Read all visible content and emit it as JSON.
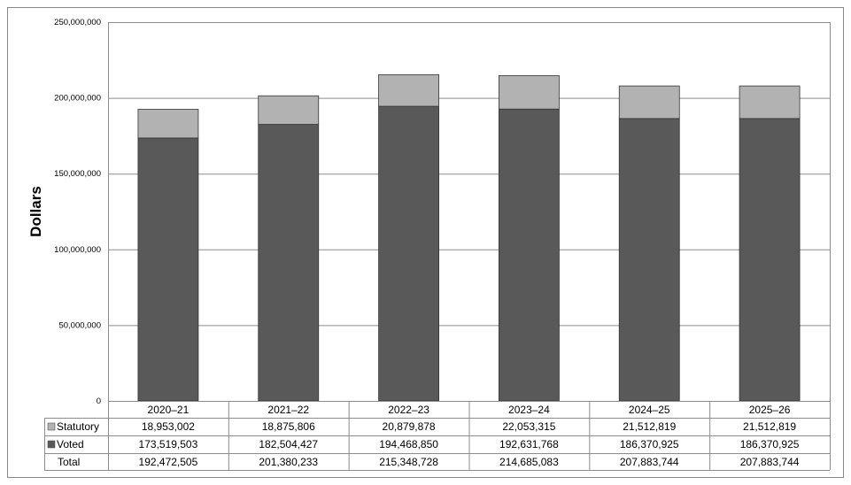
{
  "chart_data": {
    "type": "bar",
    "stacked": true,
    "categories": [
      "2020–21",
      "2021–22",
      "2022–23",
      "2023–24",
      "2024–25",
      "2025–26"
    ],
    "series": [
      {
        "name": "Voted",
        "values": [
          173519503,
          182504427,
          194468850,
          192631768,
          186370925,
          186370925
        ],
        "color": "#595959"
      },
      {
        "name": "Statutory",
        "values": [
          18953002,
          18875806,
          20879878,
          22053315,
          21512819,
          21512819
        ],
        "color": "#b2b2b2"
      }
    ],
    "totals_label": "Total",
    "totals": [
      192472505,
      201380233,
      215348728,
      214685083,
      207883744,
      207883744
    ],
    "ylabel": "Dollars",
    "ylim": [
      0,
      250000000
    ],
    "yticks": [
      0,
      50000000,
      100000000,
      150000000,
      200000000,
      250000000
    ],
    "ytick_labels": [
      "0",
      "50,000,000",
      "100,000,000",
      "150,000,000",
      "200,000,000",
      "250,000,000"
    ],
    "grid": true,
    "legend": "data-table"
  }
}
